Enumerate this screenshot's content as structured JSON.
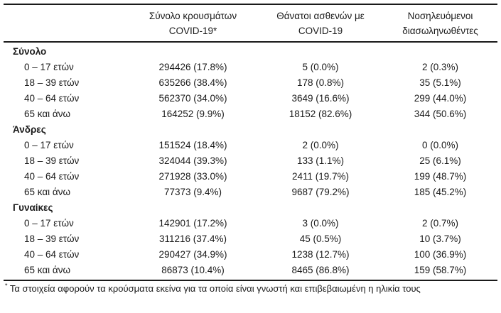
{
  "page": {
    "background": "#ffffff",
    "text_color": "#1a1a1a",
    "rule_color": "#1a1a1a"
  },
  "table": {
    "column_headers": [
      {
        "line1": "Σύνολο κρουσμάτων",
        "line2": "COVID-19*"
      },
      {
        "line1": "Θάνατοι ασθενών με",
        "line2": "COVID-19"
      },
      {
        "line1": "Νοσηλευόμενοι",
        "line2": "διασωληνωθέντες"
      }
    ],
    "sections": [
      {
        "label": "Σύνολο",
        "rows": [
          {
            "age": "0 – 17 ετών",
            "cases": "294426 (17.8%)",
            "deaths": "5 (0.0%)",
            "intubated": "2 (0.3%)"
          },
          {
            "age": "18 – 39 ετών",
            "cases": "635266 (38.4%)",
            "deaths": "178 (0.8%)",
            "intubated": "35 (5.1%)"
          },
          {
            "age": "40 – 64 ετών",
            "cases": "562370 (34.0%)",
            "deaths": "3649 (16.6%)",
            "intubated": "299 (44.0%)"
          },
          {
            "age": "65 και άνω",
            "cases": "164252 (9.9%)",
            "deaths": "18152 (82.6%)",
            "intubated": "344 (50.6%)"
          }
        ]
      },
      {
        "label": "Άνδρες",
        "rows": [
          {
            "age": "0 – 17 ετών",
            "cases": "151524 (18.4%)",
            "deaths": "2 (0.0%)",
            "intubated": "0 (0.0%)"
          },
          {
            "age": "18 – 39 ετών",
            "cases": "324044 (39.3%)",
            "deaths": "133 (1.1%)",
            "intubated": "25 (6.1%)"
          },
          {
            "age": "40 – 64 ετών",
            "cases": "271928 (33.0%)",
            "deaths": "2411 (19.7%)",
            "intubated": "199 (48.7%)"
          },
          {
            "age": "65 και άνω",
            "cases": "77373 (9.4%)",
            "deaths": "9687 (79.2%)",
            "intubated": "185 (45.2%)"
          }
        ]
      },
      {
        "label": "Γυναίκες",
        "rows": [
          {
            "age": "0 – 17 ετών",
            "cases": "142901 (17.2%)",
            "deaths": "3 (0.0%)",
            "intubated": "2 (0.7%)"
          },
          {
            "age": "18 – 39 ετών",
            "cases": "311216 (37.4%)",
            "deaths": "45 (0.5%)",
            "intubated": "10 (3.7%)"
          },
          {
            "age": "40 – 64 ετών",
            "cases": "290427 (34.9%)",
            "deaths": "1238 (12.7%)",
            "intubated": "100 (36.9%)"
          },
          {
            "age": "65 και άνω",
            "cases": "86873 (10.4%)",
            "deaths": "8465 (86.8%)",
            "intubated": "159 (58.7%)"
          }
        ]
      }
    ],
    "footnote": {
      "marker": "*",
      "text": "Τα στοιχεία αφορούν τα κρούσματα εκείνα για τα οποία είναι γνωστή και επιβεβαιωμένη η ηλικία τους"
    }
  }
}
